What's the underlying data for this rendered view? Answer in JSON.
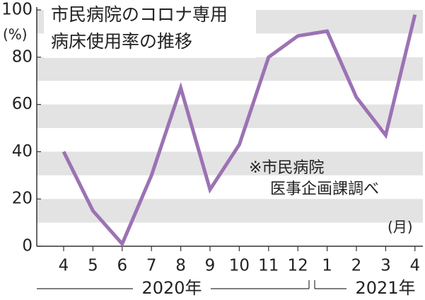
{
  "chart_data": {
    "type": "line",
    "title_lines": [
      "市民病院のコロナ専用",
      "病床使用率の推移"
    ],
    "y_label": "(%)",
    "x_label": "(月)",
    "annotation_lines": [
      "※市民病院",
      "医事企画課調べ"
    ],
    "categories": [
      "4",
      "5",
      "6",
      "7",
      "8",
      "9",
      "10",
      "11",
      "12",
      "1",
      "2",
      "3",
      "4"
    ],
    "year_labels": [
      "2020年",
      "2021年"
    ],
    "series": [
      {
        "name": "病床使用率",
        "color": "#9c72b4",
        "values": [
          40,
          15,
          1,
          30,
          67,
          24,
          43,
          80,
          89,
          91,
          63,
          47,
          98
        ]
      }
    ],
    "ylim": [
      0,
      100
    ],
    "yticks": [
      0,
      20,
      40,
      60,
      80,
      100
    ]
  }
}
